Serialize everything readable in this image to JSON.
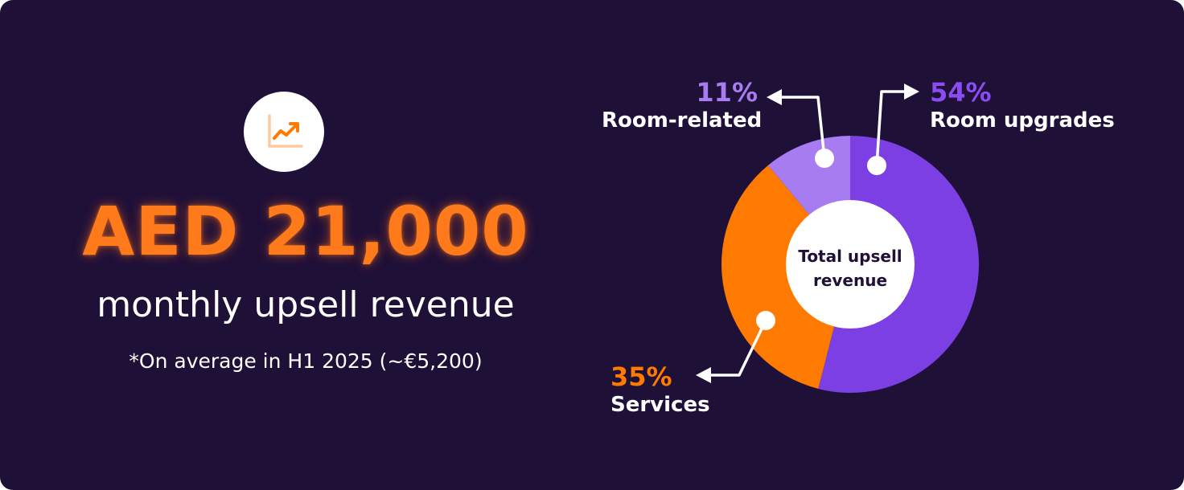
{
  "stat": {
    "value": "AED 21,000",
    "subtitle": "monthly upsell revenue",
    "footnote": "*On average in H1 2025 (~€5,200)",
    "icon": "trending-up-chart-icon"
  },
  "colors": {
    "background": "#1f1038",
    "accent_orange": "#ff7a00",
    "purple": "#7b3fe4",
    "light_purple": "#a67cf0",
    "white": "#ffffff"
  },
  "chart_data": {
    "type": "pie",
    "style": "donut",
    "center_label": "Total upsell revenue",
    "slices": [
      {
        "key": "room_upgrades",
        "label": "Room upgrades",
        "value": 54,
        "display": "54%",
        "color": "#7b3fe4"
      },
      {
        "key": "services",
        "label": "Services",
        "value": 35,
        "display": "35%",
        "color": "#ff7a00"
      },
      {
        "key": "room_related",
        "label": "Room-related",
        "value": 11,
        "display": "11%",
        "color": "#a67cf0"
      }
    ]
  }
}
